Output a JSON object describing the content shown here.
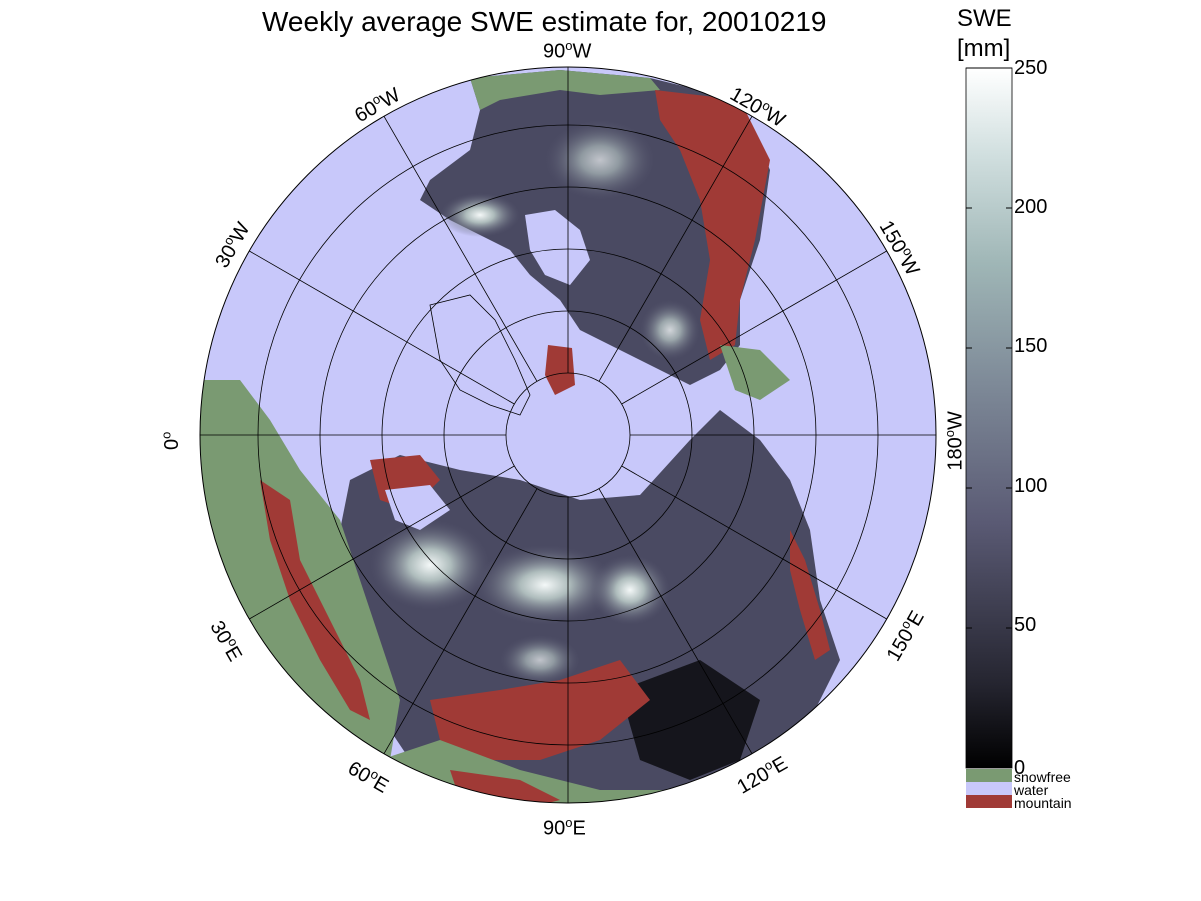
{
  "title": "Weekly average SWE estimate for, 20010219",
  "colorbar": {
    "title_line1": "SWE",
    "title_line2": "[mm]",
    "ticks": [
      "0",
      "50",
      "100",
      "150",
      "200",
      "250"
    ],
    "range": [
      0,
      250
    ],
    "categories": [
      {
        "label": "snowfree",
        "color": "#7a9a72"
      },
      {
        "label": "water",
        "color": "#c8c8fa"
      },
      {
        "label": "mountain",
        "color": "#a03a36"
      }
    ]
  },
  "map": {
    "projection": "north polar stereographic",
    "longitude_labels": [
      {
        "text": "90",
        "suffix": "W"
      },
      {
        "text": "60",
        "suffix": "W"
      },
      {
        "text": "30",
        "suffix": "W"
      },
      {
        "text": "0",
        "suffix": ""
      },
      {
        "text": "30",
        "suffix": "E"
      },
      {
        "text": "60",
        "suffix": "E"
      },
      {
        "text": "90",
        "suffix": "E"
      },
      {
        "text": "120",
        "suffix": "E"
      },
      {
        "text": "150",
        "suffix": "E"
      },
      {
        "text": "180",
        "suffix": "W"
      },
      {
        "text": "150",
        "suffix": "W"
      },
      {
        "text": "120",
        "suffix": "W"
      }
    ]
  },
  "colors": {
    "water": "#c8c8fa",
    "snowfree": "#7a9a72",
    "mountain": "#a03a36",
    "swe_low": "#000000",
    "swe_mid": "#6a6a86",
    "swe_high": "#ffffff"
  }
}
